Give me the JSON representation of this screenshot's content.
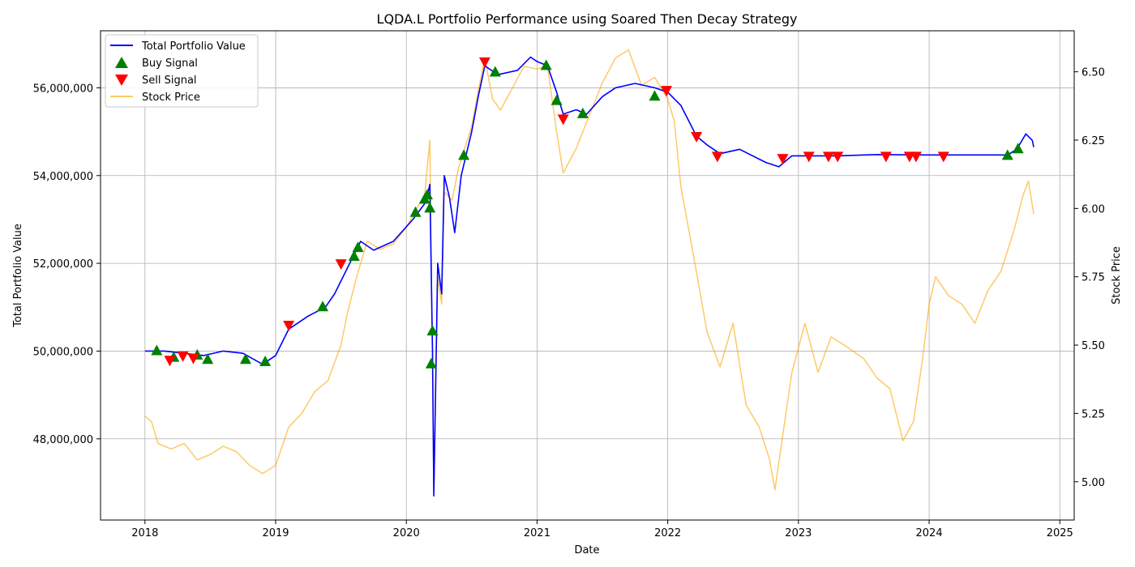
{
  "chart_data": {
    "type": "line",
    "title": "LQDA.L Portfolio Performance using Soared Then Decay Strategy",
    "xlabel": "Date",
    "ylabel_left": "Total Portfolio Value",
    "ylabel_right": "Stock Price",
    "xlim": [
      2017.66,
      2025.11
    ],
    "ylim_left": [
      46150000,
      57300000
    ],
    "ylim_right": [
      4.86,
      6.65
    ],
    "x_ticks": [
      2018,
      2019,
      2020,
      2021,
      2022,
      2023,
      2024,
      2025
    ],
    "x_tick_labels": [
      "2018",
      "2019",
      "2020",
      "2021",
      "2022",
      "2023",
      "2024",
      "2025"
    ],
    "y_left_ticks": [
      48000000,
      50000000,
      52000000,
      54000000,
      56000000
    ],
    "y_left_tick_labels": [
      "48,000,000",
      "50,000,000",
      "52,000,000",
      "54,000,000",
      "56,000,000"
    ],
    "y_right_ticks": [
      5.0,
      5.25,
      5.5,
      5.75,
      6.0,
      6.25,
      6.5
    ],
    "y_right_tick_labels": [
      "5.00",
      "5.25",
      "5.50",
      "5.75",
      "6.00",
      "6.25",
      "6.50"
    ],
    "grid": true,
    "legend_position": "top-left",
    "legend": [
      {
        "label": "Total Portfolio Value",
        "kind": "line",
        "color": "#0000ff"
      },
      {
        "label": "Buy Signal",
        "kind": "up-triangle",
        "color": "#008000"
      },
      {
        "label": "Sell Signal",
        "kind": "down-triangle",
        "color": "#ff0000"
      },
      {
        "label": "Stock Price",
        "kind": "line",
        "color": "#ffa500"
      }
    ],
    "series": [
      {
        "name": "Total Portfolio Value",
        "axis": "left",
        "color": "#0000ff",
        "points": [
          [
            2018.0,
            50000000
          ],
          [
            2018.15,
            50000000
          ],
          [
            2018.3,
            49950000
          ],
          [
            2018.45,
            49900000
          ],
          [
            2018.6,
            50000000
          ],
          [
            2018.75,
            49950000
          ],
          [
            2018.9,
            49700000
          ],
          [
            2019.0,
            49900000
          ],
          [
            2019.1,
            50500000
          ],
          [
            2019.25,
            50800000
          ],
          [
            2019.38,
            51000000
          ],
          [
            2019.45,
            51300000
          ],
          [
            2019.55,
            51900000
          ],
          [
            2019.65,
            52500000
          ],
          [
            2019.75,
            52300000
          ],
          [
            2019.9,
            52500000
          ],
          [
            2020.05,
            53000000
          ],
          [
            2020.15,
            53400000
          ],
          [
            2020.18,
            53800000
          ],
          [
            2020.2,
            50000000
          ],
          [
            2020.21,
            46700000
          ],
          [
            2020.24,
            52000000
          ],
          [
            2020.27,
            51300000
          ],
          [
            2020.29,
            54000000
          ],
          [
            2020.33,
            53500000
          ],
          [
            2020.37,
            52700000
          ],
          [
            2020.42,
            54000000
          ],
          [
            2020.5,
            55000000
          ],
          [
            2020.55,
            55800000
          ],
          [
            2020.6,
            56500000
          ],
          [
            2020.7,
            56300000
          ],
          [
            2020.85,
            56400000
          ],
          [
            2020.95,
            56700000
          ],
          [
            2021.0,
            56600000
          ],
          [
            2021.08,
            56500000
          ],
          [
            2021.15,
            55900000
          ],
          [
            2021.2,
            55400000
          ],
          [
            2021.3,
            55500000
          ],
          [
            2021.38,
            55400000
          ],
          [
            2021.5,
            55800000
          ],
          [
            2021.6,
            56000000
          ],
          [
            2021.75,
            56100000
          ],
          [
            2021.9,
            56000000
          ],
          [
            2022.0,
            55900000
          ],
          [
            2022.1,
            55600000
          ],
          [
            2022.22,
            54900000
          ],
          [
            2022.3,
            54700000
          ],
          [
            2022.4,
            54500000
          ],
          [
            2022.55,
            54600000
          ],
          [
            2022.75,
            54300000
          ],
          [
            2022.85,
            54200000
          ],
          [
            2022.95,
            54450000
          ],
          [
            2023.1,
            54450000
          ],
          [
            2023.3,
            54450000
          ],
          [
            2023.6,
            54480000
          ],
          [
            2024.0,
            54470000
          ],
          [
            2024.6,
            54470000
          ],
          [
            2024.67,
            54600000
          ],
          [
            2024.74,
            54950000
          ],
          [
            2024.79,
            54800000
          ],
          [
            2024.8,
            54650000
          ]
        ]
      },
      {
        "name": "Stock Price",
        "axis": "right",
        "color": "#ffa500",
        "points": [
          [
            2018.0,
            5.24
          ],
          [
            2018.05,
            5.22
          ],
          [
            2018.1,
            5.14
          ],
          [
            2018.2,
            5.12
          ],
          [
            2018.3,
            5.14
          ],
          [
            2018.4,
            5.08
          ],
          [
            2018.5,
            5.1
          ],
          [
            2018.6,
            5.13
          ],
          [
            2018.7,
            5.11
          ],
          [
            2018.8,
            5.06
          ],
          [
            2018.9,
            5.03
          ],
          [
            2019.0,
            5.06
          ],
          [
            2019.1,
            5.2
          ],
          [
            2019.2,
            5.25
          ],
          [
            2019.3,
            5.33
          ],
          [
            2019.4,
            5.37
          ],
          [
            2019.5,
            5.5
          ],
          [
            2019.55,
            5.62
          ],
          [
            2019.62,
            5.75
          ],
          [
            2019.7,
            5.88
          ],
          [
            2019.8,
            5.85
          ],
          [
            2019.9,
            5.87
          ],
          [
            2020.0,
            5.93
          ],
          [
            2020.08,
            6.0
          ],
          [
            2020.14,
            6.05
          ],
          [
            2020.18,
            6.25
          ],
          [
            2020.2,
            5.4
          ],
          [
            2020.21,
            4.95
          ],
          [
            2020.24,
            5.75
          ],
          [
            2020.27,
            5.65
          ],
          [
            2020.29,
            6.06
          ],
          [
            2020.35,
            6.03
          ],
          [
            2020.4,
            6.15
          ],
          [
            2020.5,
            6.3
          ],
          [
            2020.55,
            6.43
          ],
          [
            2020.6,
            6.55
          ],
          [
            2020.66,
            6.4
          ],
          [
            2020.72,
            6.36
          ],
          [
            2020.8,
            6.43
          ],
          [
            2020.9,
            6.52
          ],
          [
            2021.0,
            6.51
          ],
          [
            2021.08,
            6.52
          ],
          [
            2021.15,
            6.28
          ],
          [
            2021.2,
            6.13
          ],
          [
            2021.3,
            6.22
          ],
          [
            2021.4,
            6.34
          ],
          [
            2021.5,
            6.46
          ],
          [
            2021.6,
            6.55
          ],
          [
            2021.7,
            6.58
          ],
          [
            2021.8,
            6.45
          ],
          [
            2021.9,
            6.48
          ],
          [
            2022.0,
            6.4
          ],
          [
            2022.05,
            6.32
          ],
          [
            2022.1,
            6.08
          ],
          [
            2022.2,
            5.82
          ],
          [
            2022.3,
            5.55
          ],
          [
            2022.4,
            5.42
          ],
          [
            2022.5,
            5.58
          ],
          [
            2022.6,
            5.28
          ],
          [
            2022.7,
            5.2
          ],
          [
            2022.78,
            5.08
          ],
          [
            2022.82,
            4.97
          ],
          [
            2022.88,
            5.17
          ],
          [
            2022.95,
            5.4
          ],
          [
            2023.05,
            5.58
          ],
          [
            2023.15,
            5.4
          ],
          [
            2023.25,
            5.53
          ],
          [
            2023.35,
            5.5
          ],
          [
            2023.5,
            5.45
          ],
          [
            2023.6,
            5.38
          ],
          [
            2023.7,
            5.34
          ],
          [
            2023.8,
            5.15
          ],
          [
            2023.88,
            5.22
          ],
          [
            2023.95,
            5.45
          ],
          [
            2024.0,
            5.65
          ],
          [
            2024.05,
            5.75
          ],
          [
            2024.15,
            5.68
          ],
          [
            2024.25,
            5.65
          ],
          [
            2024.35,
            5.58
          ],
          [
            2024.45,
            5.7
          ],
          [
            2024.55,
            5.77
          ],
          [
            2024.65,
            5.92
          ],
          [
            2024.72,
            6.05
          ],
          [
            2024.76,
            6.1
          ],
          [
            2024.8,
            5.98
          ]
        ]
      }
    ],
    "buy_signals": [
      [
        2018.09,
        50000000
      ],
      [
        2018.22,
        49850000
      ],
      [
        2018.4,
        49900000
      ],
      [
        2018.48,
        49800000
      ],
      [
        2018.77,
        49800000
      ],
      [
        2018.92,
        49750000
      ],
      [
        2019.36,
        51000000
      ],
      [
        2019.6,
        52150000
      ],
      [
        2019.63,
        52350000
      ],
      [
        2020.07,
        53150000
      ],
      [
        2020.14,
        53450000
      ],
      [
        2020.16,
        53550000
      ],
      [
        2020.18,
        53250000
      ],
      [
        2020.19,
        49700000
      ],
      [
        2020.2,
        50450000
      ],
      [
        2020.44,
        54450000
      ],
      [
        2020.68,
        56350000
      ],
      [
        2021.07,
        56500000
      ],
      [
        2021.15,
        55700000
      ],
      [
        2021.35,
        55400000
      ],
      [
        2021.9,
        55800000
      ],
      [
        2024.6,
        54450000
      ],
      [
        2024.68,
        54600000
      ]
    ],
    "sell_signals": [
      [
        2018.19,
        49800000
      ],
      [
        2018.29,
        49900000
      ],
      [
        2018.37,
        49850000
      ],
      [
        2019.1,
        50600000
      ],
      [
        2019.5,
        52000000
      ],
      [
        2020.6,
        56600000
      ],
      [
        2021.2,
        55300000
      ],
      [
        2021.99,
        55950000
      ],
      [
        2022.22,
        54900000
      ],
      [
        2022.38,
        54450000
      ],
      [
        2022.88,
        54400000
      ],
      [
        2023.08,
        54450000
      ],
      [
        2023.23,
        54450000
      ],
      [
        2023.3,
        54450000
      ],
      [
        2023.67,
        54450000
      ],
      [
        2023.85,
        54450000
      ],
      [
        2023.9,
        54450000
      ],
      [
        2024.11,
        54450000
      ]
    ]
  }
}
